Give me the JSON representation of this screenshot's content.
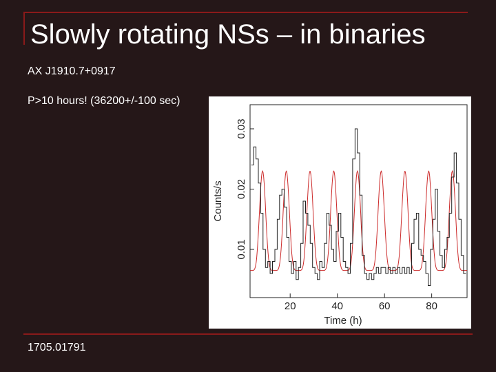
{
  "slide": {
    "title": "Slowly rotating NSs – in binaries",
    "source_name": "AX J1910.7+0917",
    "period_note": "P>10 hours! (36200+/-100 sec)",
    "reference": "1705.01791",
    "accent_color": "#8a1a1a",
    "background_color": "#251718"
  },
  "chart_data": {
    "type": "line",
    "title": "",
    "xlabel": "Time (h)",
    "ylabel": "Counts/s",
    "xlim": [
      3,
      95
    ],
    "ylim": [
      0.002,
      0.034
    ],
    "x_ticks": [
      20,
      40,
      60,
      80
    ],
    "y_ticks": [
      0.01,
      0.02,
      0.03
    ],
    "y_tick_labels": [
      "0.01",
      "0.02",
      "0.03"
    ],
    "grid": false,
    "series": [
      {
        "kind": "observed light curve (histogram steps)",
        "color": "#222222",
        "x": [
          4,
          5,
          6,
          7,
          8,
          9,
          10,
          11,
          12,
          13,
          14,
          15,
          16,
          17,
          18,
          19,
          20,
          21,
          22,
          23,
          24,
          25,
          26,
          27,
          28,
          29,
          30,
          31,
          32,
          33,
          34,
          35,
          36,
          37,
          38,
          39,
          40,
          41,
          42,
          43,
          44,
          45,
          46,
          47,
          48,
          49,
          50,
          51,
          52,
          53,
          54,
          55,
          56,
          57,
          58,
          59,
          60,
          61,
          62,
          63,
          64,
          65,
          66,
          67,
          68,
          69,
          70,
          71,
          72,
          73,
          74,
          75,
          76,
          77,
          78,
          79,
          80,
          81,
          82,
          83,
          84,
          85,
          86,
          87,
          88,
          89,
          90,
          91,
          92,
          93,
          94
        ],
        "y": [
          0.024,
          0.027,
          0.025,
          0.021,
          0.016,
          0.01,
          0.007,
          0.008,
          0.006,
          0.008,
          0.01,
          0.015,
          0.019,
          0.02,
          0.017,
          0.012,
          0.008,
          0.006,
          0.008,
          0.005,
          0.007,
          0.011,
          0.018,
          0.016,
          0.014,
          0.011,
          0.007,
          0.006,
          0.005,
          0.008,
          0.007,
          0.011,
          0.016,
          0.014,
          0.01,
          0.008,
          0.013,
          0.016,
          0.012,
          0.008,
          0.007,
          0.006,
          0.011,
          0.025,
          0.03,
          0.026,
          0.019,
          0.009,
          0.006,
          0.005,
          0.006,
          0.005,
          0.006,
          0.007,
          0.006,
          0.007,
          0.007,
          0.006,
          0.007,
          0.006,
          0.007,
          0.006,
          0.007,
          0.006,
          0.007,
          0.006,
          0.007,
          0.006,
          0.011,
          0.015,
          0.016,
          0.01,
          0.009,
          0.008,
          0.006,
          0.004,
          0.01,
          0.015,
          0.02,
          0.013,
          0.009,
          0.007,
          0.01,
          0.012,
          0.016,
          0.022,
          0.026,
          0.021,
          0.015,
          0.009,
          0.006
        ]
      },
      {
        "kind": "periodic model",
        "color": "#cc2a2a",
        "period_hours": 10.06,
        "phase_peak_hours": 8.3,
        "baseline": 0.0065,
        "amplitude": 0.0165
      }
    ]
  }
}
